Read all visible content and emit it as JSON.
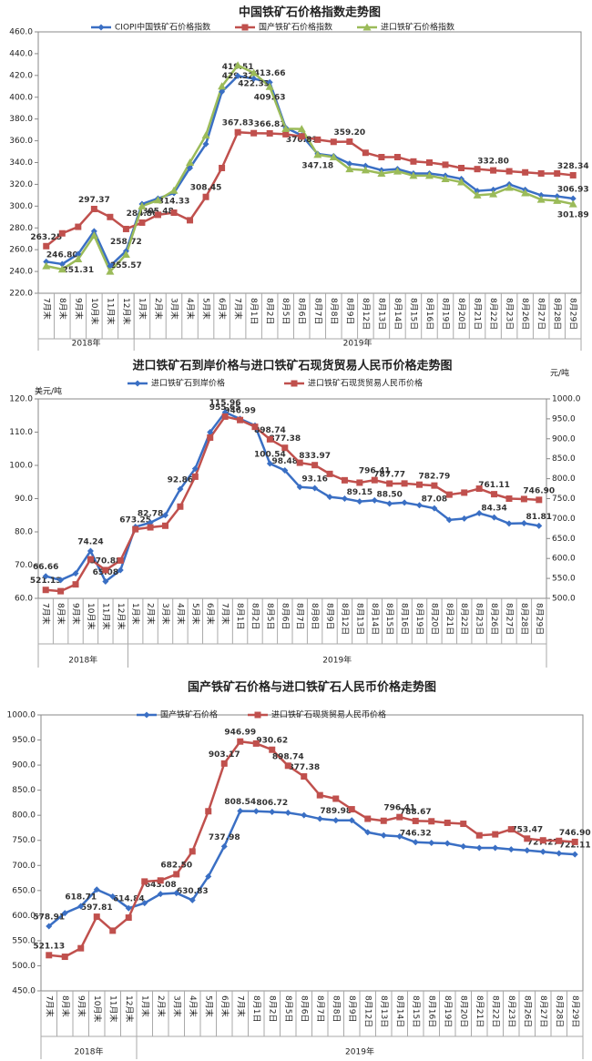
{
  "chart_data": [
    {
      "type": "line",
      "title": "中国铁矿石价格指数走势图",
      "categories": [
        "7月末",
        "8月末",
        "9月末",
        "10月末",
        "11月末",
        "12月末",
        "1月末",
        "2月末",
        "3月末",
        "4月末",
        "5月末",
        "6月末",
        "7月末",
        "8月1日",
        "8月2日",
        "8月5日",
        "8月6日",
        "8月7日",
        "8月8日",
        "8月9日",
        "8月12日",
        "8月13日",
        "8月14日",
        "8月15日",
        "8月16日",
        "8月19日",
        "8月20日",
        "8月21日",
        "8月22日",
        "8月23日",
        "8月26日",
        "8月27日",
        "8月28日",
        "8月29日"
      ],
      "year_labels": [
        "2018年",
        "2019年"
      ],
      "ylim": [
        220,
        460
      ],
      "yticks": [
        {
          "value": 220,
          "label": "220.0"
        },
        {
          "value": 240,
          "label": "240.0"
        },
        {
          "value": 260,
          "label": "260.0"
        },
        {
          "value": 280,
          "label": "280.0"
        },
        {
          "value": 300,
          "label": "300.0"
        },
        {
          "value": 320,
          "label": "320.0"
        },
        {
          "value": 340,
          "label": "340.0"
        },
        {
          "value": 360,
          "label": "360.0"
        },
        {
          "value": 380,
          "label": "380.0"
        },
        {
          "value": 400,
          "label": "400.0"
        },
        {
          "value": 420,
          "label": "420.0"
        },
        {
          "value": 440,
          "label": "440.0"
        },
        {
          "value": 460,
          "label": "460.0"
        }
      ],
      "series": [
        {
          "name": "CIOPI中国铁矿石价格指数",
          "color": "#3a6fc4",
          "marker": "diamond",
          "values": [
            249,
            246.8,
            256,
            277,
            245,
            258.72,
            302,
            307,
            312,
            335,
            357,
            405,
            419.51,
            417,
            413.66,
            372,
            365,
            348,
            346,
            339,
            337,
            333,
            334,
            330,
            330,
            328,
            325,
            314,
            315,
            320,
            315,
            310,
            309,
            306.93
          ],
          "value_labels": [
            null,
            "246.80",
            null,
            null,
            null,
            "258.72",
            null,
            null,
            null,
            null,
            null,
            null,
            "419.51",
            null,
            "413.66",
            null,
            null,
            null,
            null,
            null,
            null,
            null,
            null,
            null,
            null,
            null,
            null,
            null,
            null,
            null,
            null,
            null,
            null,
            "306.93"
          ]
        },
        {
          "name": "国产铁矿石价格指数",
          "color": "#c0504d",
          "marker": "square",
          "values": [
            263.25,
            275,
            281,
            297.37,
            290,
            279,
            284.86,
            292,
            294,
            287,
            308.45,
            335,
            367.83,
            367,
            366.81,
            366,
            364,
            361,
            359,
            359.2,
            349,
            345,
            345,
            341,
            340,
            338,
            335,
            334,
            332.8,
            332,
            331,
            330,
            330,
            328.34
          ],
          "value_labels": [
            "263.25",
            null,
            null,
            "297.37",
            null,
            null,
            "284.86",
            null,
            null,
            null,
            "308.45",
            null,
            "367.83",
            null,
            "366.81",
            null,
            null,
            null,
            null,
            "359.20",
            null,
            null,
            null,
            null,
            null,
            null,
            null,
            null,
            "332.80",
            null,
            null,
            null,
            null,
            "328.34"
          ]
        },
        {
          "name": "进口铁矿石价格指数",
          "color": "#9bbb59",
          "marker": "triangle",
          "values": [
            245,
            242,
            251.31,
            273,
            240,
            255.57,
            300,
            305.48,
            314.33,
            340,
            365,
            410,
            429.32,
            422.33,
            409.63,
            371,
            370.81,
            347.18,
            345,
            334,
            333,
            330,
            332,
            328,
            328,
            325,
            322,
            310,
            311,
            317,
            312,
            306,
            305,
            301.89
          ],
          "value_labels": [
            null,
            null,
            "251.31",
            null,
            null,
            "255.57",
            null,
            "305.48",
            "314.33",
            null,
            null,
            null,
            "429.32",
            "422.33",
            "409.63",
            null,
            "370.81",
            "347.18",
            null,
            null,
            null,
            null,
            null,
            null,
            null,
            null,
            null,
            null,
            null,
            null,
            null,
            null,
            null,
            "301.89"
          ]
        }
      ]
    },
    {
      "type": "line",
      "title": "进口铁矿石到岸价格与进口铁矿石现货贸易人民币价格走势图",
      "y_label": "美元/吨",
      "y2_label": "元/吨",
      "categories": [
        "7月末",
        "8月末",
        "9月末",
        "10月末",
        "11月末",
        "12月末",
        "1月末",
        "2月末",
        "3月末",
        "4月末",
        "5月末",
        "6月末",
        "7月末",
        "8月1日",
        "8月2日",
        "8月5日",
        "8月6日",
        "8月7日",
        "8月8日",
        "8月9日",
        "8月12日",
        "8月13日",
        "8月14日",
        "8月15日",
        "8月16日",
        "8月19日",
        "8月20日",
        "8月21日",
        "8月22日",
        "8月23日",
        "8月26日",
        "8月27日",
        "8月28日",
        "8月29日"
      ],
      "year_labels": [
        "2018年",
        "2019年"
      ],
      "ylim": [
        60,
        120
      ],
      "yticks": [
        {
          "value": 60,
          "label": "60.0"
        },
        {
          "value": 70,
          "label": "70.0"
        },
        {
          "value": 80,
          "label": "80.0"
        },
        {
          "value": 90,
          "label": "90.0"
        },
        {
          "value": 100,
          "label": "100.0"
        },
        {
          "value": 110,
          "label": "110.0"
        },
        {
          "value": 120,
          "label": "120.0"
        }
      ],
      "y2lim": [
        500,
        1000
      ],
      "y2ticks": [
        {
          "value": 500,
          "label": "500.0"
        },
        {
          "value": 550,
          "label": "550.0"
        },
        {
          "value": 600,
          "label": "600.0"
        },
        {
          "value": 650,
          "label": "650.0"
        },
        {
          "value": 700,
          "label": "700.0"
        },
        {
          "value": 750,
          "label": "750.0"
        },
        {
          "value": 800,
          "label": "800.0"
        },
        {
          "value": 850,
          "label": "850.0"
        },
        {
          "value": 900,
          "label": "900.0"
        },
        {
          "value": 950,
          "label": "950.0"
        },
        {
          "value": 1000,
          "label": "1000.0"
        }
      ],
      "series": [
        {
          "name": "进口铁矿石到岸价格",
          "color": "#3a6fc4",
          "marker": "diamond",
          "values": [
            66.66,
            65.5,
            67.5,
            74.24,
            65.08,
            68.5,
            81.5,
            82.78,
            85,
            92.86,
            99,
            110,
            115.96,
            114,
            112,
            100.54,
            98.48,
            93.5,
            93.16,
            90.5,
            90,
            89.15,
            89.5,
            88.5,
            88.8,
            88,
            87.08,
            83.6,
            84,
            85.6,
            84.34,
            82.5,
            82.6,
            81.81
          ],
          "value_labels": [
            "66.66",
            null,
            null,
            "74.24",
            "65.08",
            null,
            null,
            "82.78",
            null,
            "92.86",
            null,
            null,
            "115.96",
            null,
            null,
            "100.54",
            "98.48",
            null,
            "93.16",
            null,
            null,
            "89.15",
            null,
            "88.50",
            null,
            null,
            "87.08",
            null,
            null,
            null,
            "84.34",
            null,
            null,
            "81.81"
          ]
        },
        {
          "name": "进口铁矿石现货贸易人民币价格",
          "color": "#c0504d",
          "marker": "square",
          "axis": "y2",
          "values": [
            521.13,
            518,
            535,
            598,
            570.88,
            595,
            673.25,
            678,
            682,
            730,
            805,
            903,
            955.65,
            946.99,
            930,
            898.74,
            877.38,
            840,
            833.97,
            812,
            796,
            790,
            796.41,
            787.77,
            788,
            785,
            782.79,
            760,
            765,
            775,
            761.11,
            750,
            749,
            746.9
          ],
          "value_labels": [
            "521.13",
            null,
            null,
            null,
            "570.88",
            null,
            "673.25",
            null,
            null,
            null,
            null,
            null,
            "955.65",
            "946.99",
            null,
            "898.74",
            "877.38",
            null,
            "833.97",
            null,
            null,
            null,
            "796.41",
            "787.77",
            null,
            null,
            "782.79",
            null,
            null,
            null,
            "761.11",
            null,
            null,
            "746.90"
          ]
        }
      ]
    },
    {
      "type": "line",
      "title": "国产铁矿石价格与进口铁矿石人民币价格走势图",
      "categories": [
        "7月末",
        "8月末",
        "9月末",
        "10月末",
        "11月末",
        "12月末",
        "1月末",
        "2月末",
        "3月末",
        "4月末",
        "5月末",
        "6月末",
        "7月末",
        "8月1日",
        "8月2日",
        "8月5日",
        "8月6日",
        "8月7日",
        "8月8日",
        "8月9日",
        "8月12日",
        "8月13日",
        "8月14日",
        "8月15日",
        "8月16日",
        "8月19日",
        "8月20日",
        "8月21日",
        "8月22日",
        "8月23日",
        "8月26日",
        "8月27日",
        "8月28日",
        "8月29日"
      ],
      "year_labels": [
        "2018年",
        "2019年"
      ],
      "ylim": [
        450,
        1000
      ],
      "yticks": [
        {
          "value": 450,
          "label": "450.0"
        },
        {
          "value": 500,
          "label": "500.0"
        },
        {
          "value": 550,
          "label": "550.0"
        },
        {
          "value": 600,
          "label": "600.0"
        },
        {
          "value": 650,
          "label": "650.0"
        },
        {
          "value": 700,
          "label": "700.0"
        },
        {
          "value": 750,
          "label": "750.0"
        },
        {
          "value": 800,
          "label": "800.0"
        },
        {
          "value": 850,
          "label": "850.0"
        },
        {
          "value": 900,
          "label": "900.0"
        },
        {
          "value": 950,
          "label": "950.0"
        },
        {
          "value": 1000,
          "label": "1000.0"
        }
      ],
      "series": [
        {
          "name": "国产铁矿石价格",
          "color": "#3a6fc4",
          "marker": "diamond",
          "values": [
            578.91,
            605,
            618.71,
            652,
            638,
            614.84,
            625,
            643.08,
            645,
            630.83,
            678,
            737.98,
            808.54,
            808,
            806.72,
            805,
            800,
            793,
            789.98,
            790,
            766,
            760,
            758,
            746.32,
            745,
            744,
            738,
            735,
            735,
            732,
            730,
            727.27,
            724,
            722.11
          ],
          "value_labels": [
            "578.91",
            null,
            "618.71",
            null,
            null,
            "614.84",
            null,
            "643.08",
            null,
            "630.83",
            null,
            "737.98",
            "808.54",
            null,
            "806.72",
            null,
            null,
            null,
            "789.98",
            null,
            null,
            null,
            null,
            "746.32",
            null,
            null,
            null,
            null,
            null,
            null,
            null,
            "727.27",
            null,
            "722.11"
          ]
        },
        {
          "name": "进口铁矿石现货贸易人民币价格",
          "color": "#c0504d",
          "marker": "square",
          "values": [
            521.13,
            518,
            535,
            597.81,
            570,
            596,
            668,
            670,
            682.5,
            728,
            808,
            903.17,
            946.99,
            943,
            930.62,
            898.74,
            877.38,
            840,
            833,
            812,
            793,
            789,
            796.41,
            788.67,
            788,
            785,
            783,
            760,
            762,
            772,
            753.47,
            750,
            749,
            746.9
          ],
          "value_labels": [
            "521.13",
            null,
            null,
            "597.81",
            null,
            null,
            null,
            null,
            "682.50",
            null,
            null,
            "903.17",
            "946.99",
            null,
            "930.62",
            "898.74",
            "877.38",
            null,
            null,
            null,
            null,
            null,
            "796.41",
            "788.67",
            null,
            null,
            null,
            null,
            null,
            null,
            "753.47",
            null,
            null,
            "746.90"
          ]
        }
      ]
    }
  ]
}
